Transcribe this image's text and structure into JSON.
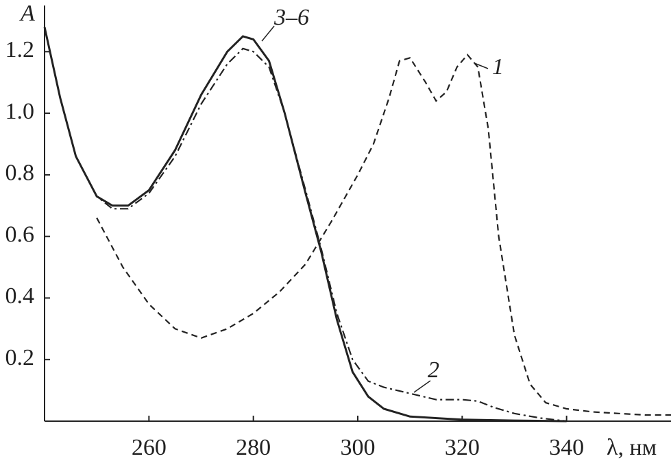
{
  "chart_data": {
    "type": "line",
    "y_label": "A",
    "x_label": "λ, нм",
    "xlim": [
      240,
      360
    ],
    "ylim": [
      0,
      1.35
    ],
    "xticks": [
      260,
      280,
      300,
      320,
      340
    ],
    "yticks": [
      0.2,
      0.4,
      0.6,
      0.8,
      {
        "value": 1,
        "label": "1.0"
      },
      1.2
    ],
    "grid": false,
    "series": [
      {
        "name": "1",
        "color": "#222222",
        "style": "dashed",
        "x": [
          250,
          255,
          260,
          265,
          270,
          275,
          280,
          285,
          290,
          295,
          300,
          303,
          306,
          308,
          310,
          313,
          315,
          317,
          319,
          321,
          323,
          325,
          327,
          330,
          333,
          336,
          340,
          345,
          350,
          355,
          360
        ],
        "values": [
          0.66,
          0.5,
          0.38,
          0.3,
          0.27,
          0.3,
          0.35,
          0.42,
          0.51,
          0.65,
          0.8,
          0.9,
          1.05,
          1.17,
          1.18,
          1.1,
          1.04,
          1.07,
          1.15,
          1.19,
          1.15,
          0.95,
          0.6,
          0.28,
          0.12,
          0.06,
          0.04,
          0.03,
          0.025,
          0.02,
          0.02
        ]
      },
      {
        "name": "2",
        "color": "#222222",
        "style": "dashdot",
        "x": [
          240,
          243,
          246,
          250,
          253,
          256,
          260,
          265,
          270,
          275,
          278,
          280,
          283,
          286,
          290,
          293,
          296,
          299,
          302,
          305,
          310,
          315,
          320,
          323,
          326,
          330,
          335,
          340
        ],
        "values": [
          1.28,
          1.05,
          0.86,
          0.73,
          0.69,
          0.69,
          0.74,
          0.86,
          1.03,
          1.16,
          1.21,
          1.2,
          1.15,
          1.0,
          0.75,
          0.56,
          0.35,
          0.2,
          0.13,
          0.11,
          0.09,
          0.07,
          0.07,
          0.065,
          0.045,
          0.025,
          0.01,
          0
        ]
      },
      {
        "name": "3–6",
        "color": "#222222",
        "style": "solid",
        "x": [
          240,
          243,
          246,
          250,
          253,
          256,
          260,
          265,
          270,
          275,
          278,
          280,
          283,
          286,
          290,
          293,
          296,
          299,
          302,
          305,
          310,
          320,
          330,
          340
        ],
        "values": [
          1.28,
          1.05,
          0.86,
          0.73,
          0.7,
          0.7,
          0.75,
          0.88,
          1.06,
          1.2,
          1.25,
          1.24,
          1.17,
          1.0,
          0.74,
          0.55,
          0.33,
          0.16,
          0.08,
          0.04,
          0.015,
          0.005,
          0.002,
          0
        ]
      }
    ]
  }
}
